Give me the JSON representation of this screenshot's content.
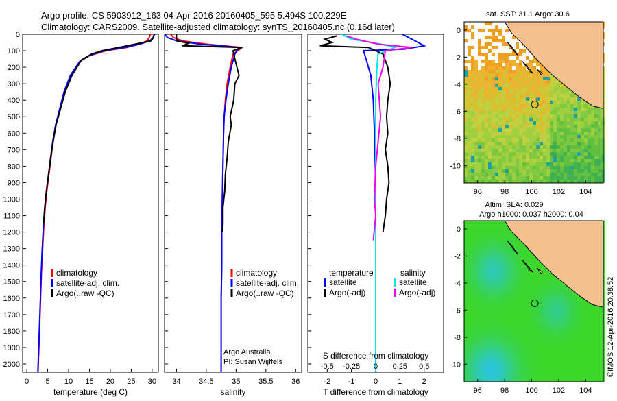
{
  "header": {
    "title_line1": "Argo profile: CS 5903912_163 04-Apr-2016 20160405_595 5.494S 100.229E",
    "title_line2": "Climatology: CARS2009. Satellite-adjusted climatology: synTS_20160405.nc (0.16d later)"
  },
  "colors": {
    "climatology": "#ff0000",
    "satellite": "#0000ff",
    "argo": "#000000",
    "satellite_diff": "#00e5ee",
    "argo_diff": "#ee00ee"
  },
  "chart_data": [
    {
      "type": "line",
      "name": "temperature-profile",
      "xlabel": "temperature (deg C)",
      "ylabel": "",
      "xlim": [
        -1,
        31.5
      ],
      "ylim": [
        2050,
        0
      ],
      "xticks": [
        0,
        5,
        10,
        15,
        20,
        25,
        30
      ],
      "yticks": [
        0,
        100,
        200,
        300,
        400,
        500,
        600,
        700,
        800,
        900,
        1000,
        1100,
        1200,
        1300,
        1400,
        1500,
        1600,
        1700,
        1800,
        1900,
        2000
      ],
      "legend": [
        "climatology",
        "satellite-adj. clim.",
        "Argo(..raw -QC)"
      ],
      "series": [
        {
          "name": "climatology",
          "color": "#ff0000",
          "x": [
            29.6,
            29.3,
            28.8,
            27,
            24,
            19,
            15,
            13,
            10.5,
            9,
            8,
            7,
            6.3,
            5.8,
            5.3,
            4.8,
            4.4,
            4.1,
            3.8,
            3.5,
            3.3,
            3.1,
            2.9,
            2.7
          ],
          "y": [
            0,
            20,
            40,
            60,
            80,
            100,
            130,
            160,
            250,
            350,
            450,
            550,
            650,
            750,
            850,
            950,
            1050,
            1150,
            1300,
            1450,
            1600,
            1750,
            1900,
            2050
          ]
        },
        {
          "name": "satellite",
          "color": "#0000ff",
          "x": [
            30.6,
            30.2,
            29.5,
            27,
            23.5,
            18.5,
            14.8,
            12.8,
            10.4,
            8.9,
            7.9,
            6.9,
            6.2,
            5.7,
            5.2,
            4.7,
            4.3,
            4,
            3.7,
            3.45,
            3.25,
            3.05,
            2.85,
            2.65
          ],
          "y": [
            0,
            20,
            40,
            60,
            80,
            100,
            130,
            160,
            250,
            350,
            450,
            550,
            650,
            750,
            850,
            950,
            1050,
            1150,
            1300,
            1450,
            1600,
            1750,
            1900,
            2050
          ]
        },
        {
          "name": "argo",
          "color": "#000000",
          "x": [
            30.4,
            30.3,
            29.8,
            26,
            22,
            18,
            15.5,
            14.2,
            13,
            10.8,
            9.2,
            8.1,
            7,
            6.3,
            5.7,
            5.2,
            4.7,
            4.3,
            4
          ],
          "y": [
            5,
            20,
            40,
            60,
            80,
            100,
            120,
            140,
            160,
            250,
            350,
            450,
            550,
            650,
            750,
            850,
            950,
            1050,
            1150
          ]
        }
      ]
    },
    {
      "type": "line",
      "name": "salinity-profile",
      "xlabel": "salinity",
      "ylabel": "",
      "xlim": [
        33.8,
        36.1
      ],
      "ylim": [
        2050,
        0
      ],
      "xticks": [
        34,
        34.5,
        35,
        35.5,
        36
      ],
      "legend": [
        "climatology",
        "satellite-adj. clim.",
        "Argo(..raw -QC)"
      ],
      "annotation_line1": "Argo Australia",
      "annotation_line2": "PI: Susan Wijffels",
      "series": [
        {
          "name": "climatology",
          "color": "#ff0000",
          "x": [
            33.9,
            33.95,
            34.1,
            34.5,
            35.1,
            34.95,
            34.9,
            34.85,
            34.82,
            34.8,
            34.79,
            34.78,
            34.77,
            34.76,
            34.76,
            34.75,
            34.75,
            34.75
          ],
          "y": [
            0,
            20,
            40,
            60,
            80,
            120,
            200,
            300,
            400,
            500,
            600,
            800,
            1000,
            1200,
            1400,
            1600,
            1800,
            2050
          ]
        },
        {
          "name": "satellite",
          "color": "#0000ff",
          "x": [
            33.8,
            33.85,
            34,
            34.4,
            35.05,
            34.98,
            34.92,
            34.87,
            34.83,
            34.8,
            34.79,
            34.78,
            34.77,
            34.76,
            34.76,
            34.75,
            34.75,
            34.75
          ],
          "y": [
            0,
            20,
            40,
            60,
            80,
            120,
            200,
            300,
            400,
            500,
            600,
            800,
            1000,
            1200,
            1400,
            1600,
            1800,
            2050
          ]
        },
        {
          "name": "argo",
          "color": "#000000",
          "x": [
            34,
            34,
            34.2,
            34.1,
            35.1,
            34.95,
            34.98,
            35.05,
            34.98,
            34.96,
            34.9,
            34.92,
            34.87,
            34.85,
            34.82,
            34.81,
            34.78,
            34.78,
            34.77
          ],
          "y": [
            0,
            40,
            55,
            70,
            80,
            100,
            150,
            250,
            300,
            400,
            500,
            550,
            650,
            750,
            850,
            950,
            1050,
            1150,
            1200
          ]
        }
      ]
    },
    {
      "type": "line",
      "name": "difference-profile",
      "xlabel": "T difference from climatology",
      "xlabel_top": "S difference from climatology",
      "xlim": [
        -2.8,
        2.8
      ],
      "ylim": [
        2050,
        0
      ],
      "xticks": [
        -2,
        -1,
        0,
        1,
        2
      ],
      "xticks_s_labels": [
        "-0.5",
        "-0.25",
        "0",
        "0.25",
        "0.5"
      ],
      "legend_temperature_title": "temperature",
      "legend_salinity_title": "salinity",
      "legend": [
        "satellite",
        "Argo(-adj)",
        "satellite",
        "Argo(-adj)"
      ],
      "series": [
        {
          "name": "T satellite",
          "color": "#0000ff",
          "x": [
            1.1,
            1.5,
            2,
            1.2,
            -0.5,
            -0.4,
            -0.2,
            -0.1,
            -0.05,
            0,
            0,
            0
          ],
          "y": [
            0,
            30,
            70,
            90,
            100,
            150,
            250,
            400,
            600,
            900,
            1300,
            2050
          ]
        },
        {
          "name": "T Argo",
          "color": "#000000",
          "x": [
            -1.6,
            -2.1,
            -1.8,
            -2.3,
            -0.3,
            0.3,
            0.5,
            0.6,
            0.5,
            0.45,
            0.5,
            0.4,
            0.5,
            0.55,
            0.45,
            0.4,
            0.3
          ],
          "y": [
            10,
            30,
            50,
            70,
            80,
            120,
            200,
            300,
            400,
            500,
            600,
            700,
            800,
            900,
            1000,
            1100,
            1200
          ]
        },
        {
          "name": "S satellite",
          "color": "#00e5ee",
          "x": [
            -1.4,
            -1,
            0.2,
            0.8,
            0.1,
            0.05,
            0,
            0,
            0,
            0
          ],
          "y": [
            0,
            30,
            60,
            80,
            120,
            200,
            400,
            800,
            1400,
            2050
          ]
        },
        {
          "name": "S Argo",
          "color": "#ee00ee",
          "x": [
            -1.2,
            -0.8,
            0.1,
            1.5,
            0.4,
            0.3,
            0.1,
            0.2,
            0,
            -0.05,
            0,
            -0.1
          ],
          "y": [
            10,
            30,
            60,
            80,
            100,
            200,
            300,
            500,
            800,
            1000,
            1100,
            1250
          ]
        }
      ]
    },
    {
      "type": "heatmap",
      "name": "sst-map",
      "title": "sat. SST: 31.1  Argo: 30.6",
      "xticks": [
        96,
        98,
        100,
        102,
        104
      ],
      "yticks": [
        0,
        -2,
        -4,
        -6,
        -8,
        -10
      ],
      "xlim": [
        95,
        105.3
      ],
      "ylim": [
        -11.3,
        0.6
      ],
      "argo_lon": 100.229,
      "argo_lat": -5.494
    },
    {
      "type": "heatmap",
      "name": "sla-map",
      "title_line1": "Altim. SLA: 0.029",
      "title_line2": "Argo h1000: 0.037 h2000: 0.04",
      "xticks": [
        96,
        98,
        100,
        102,
        104
      ],
      "yticks": [
        0,
        -2,
        -4,
        -6,
        -8,
        -10
      ],
      "xlim": [
        95,
        105.3
      ],
      "ylim": [
        -11.3,
        0.6
      ],
      "argo_lon": 100.229,
      "argo_lat": -5.494
    }
  ],
  "footer": {
    "stamp": "©IMOS 12-Apr-2016 20:38:52"
  }
}
